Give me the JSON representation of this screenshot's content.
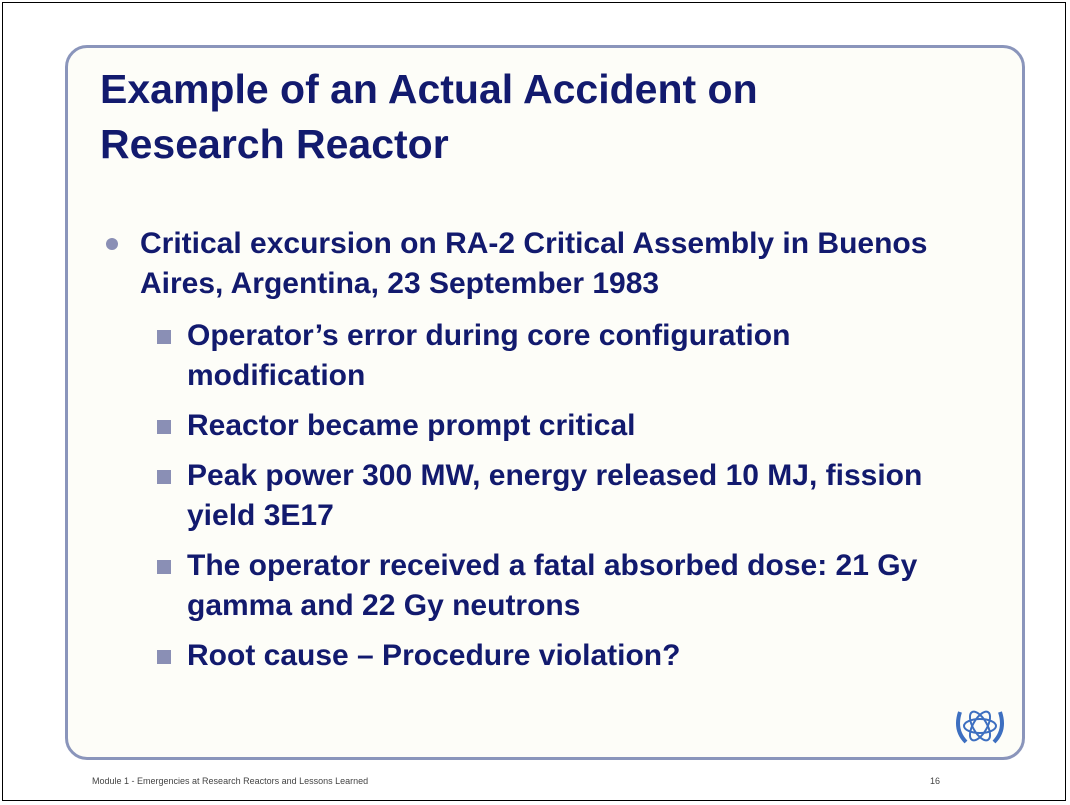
{
  "slide": {
    "title": "Example of an Actual Accident on Research Reactor",
    "bullet": "Critical excursion on RA-2 Critical Assembly in Buenos Aires, Argentina, 23 September 1983",
    "subbullets": [
      "Operator’s error during core configuration modification",
      "Reactor became prompt critical",
      "Peak power 300 MW, energy released 10 MJ, fission yield 3E17",
      "The operator received a fatal absorbed dose: 21 Gy gamma and 22 Gy neutrons",
      "Root cause – Procedure violation?"
    ],
    "footer": "Module 1 - Emergencies at Research Reactors and Lessons Learned",
    "page_number": "16"
  }
}
